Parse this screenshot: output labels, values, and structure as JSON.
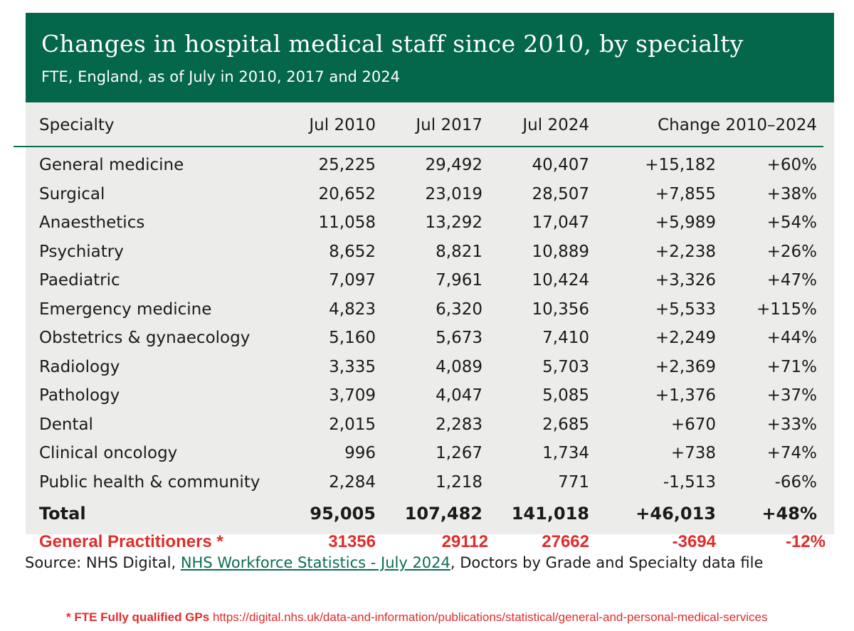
{
  "title": "Changes in hospital medical staff since 2010, by specialty",
  "subtitle": "FTE, England, as of July in 2010, 2017 and 2024",
  "columns": {
    "specialty": "Specialty",
    "jul2010": "Jul 2010",
    "jul2017": "Jul 2017",
    "jul2024": "Jul 2024",
    "change": "Change 2010–2024"
  },
  "rows": [
    {
      "specialty": "General medicine",
      "jul2010": "25,225",
      "jul2017": "29,492",
      "jul2024": "40,407",
      "change": "+15,182",
      "pct": "+60%"
    },
    {
      "specialty": "Surgical",
      "jul2010": "20,652",
      "jul2017": "23,019",
      "jul2024": "28,507",
      "change": "+7,855",
      "pct": "+38%"
    },
    {
      "specialty": "Anaesthetics",
      "jul2010": "11,058",
      "jul2017": "13,292",
      "jul2024": "17,047",
      "change": "+5,989",
      "pct": "+54%"
    },
    {
      "specialty": "Psychiatry",
      "jul2010": "8,652",
      "jul2017": "8,821",
      "jul2024": "10,889",
      "change": "+2,238",
      "pct": "+26%"
    },
    {
      "specialty": "Paediatric",
      "jul2010": "7,097",
      "jul2017": "7,961",
      "jul2024": "10,424",
      "change": "+3,326",
      "pct": "+47%"
    },
    {
      "specialty": "Emergency medicine",
      "jul2010": "4,823",
      "jul2017": "6,320",
      "jul2024": "10,356",
      "change": "+5,533",
      "pct": "+115%"
    },
    {
      "specialty": "Obstetrics & gynaecology",
      "jul2010": "5,160",
      "jul2017": "5,673",
      "jul2024": "7,410",
      "change": "+2,249",
      "pct": "+44%"
    },
    {
      "specialty": "Radiology",
      "jul2010": "3,335",
      "jul2017": "4,089",
      "jul2024": "5,703",
      "change": "+2,369",
      "pct": "+71%"
    },
    {
      "specialty": "Pathology",
      "jul2010": "3,709",
      "jul2017": "4,047",
      "jul2024": "5,085",
      "change": "+1,376",
      "pct": "+37%"
    },
    {
      "specialty": "Dental",
      "jul2010": "2,015",
      "jul2017": "2,283",
      "jul2024": "2,685",
      "change": "+670",
      "pct": "+33%"
    },
    {
      "specialty": "Clinical oncology",
      "jul2010": "996",
      "jul2017": "1,267",
      "jul2024": "1,734",
      "change": "+738",
      "pct": "+74%"
    },
    {
      "specialty": "Public health & community",
      "jul2010": "2,284",
      "jul2017": "1,218",
      "jul2024": "771",
      "change": "-1,513",
      "pct": "-66%"
    }
  ],
  "total": {
    "specialty": "Total",
    "jul2010": "95,005",
    "jul2017": "107,482",
    "jul2024": "141,018",
    "change": "+46,013",
    "pct": "+48%"
  },
  "gp_row": {
    "specialty": "General Practitioners *",
    "jul2010": "31356",
    "jul2017": "29112",
    "jul2024": "27662",
    "change": "-3694",
    "pct": "-12%"
  },
  "source": {
    "prefix": "Source: NHS Digital, ",
    "link_text": "NHS Workforce Statistics - July 2024",
    "suffix": ", Doctors by Grade and Specialty data file"
  },
  "footnote": {
    "label": "* FTE Fully qualified GPs",
    "url": "https://digital.nhs.uk/data-and-information/publications/statistical/general-and-personal-medical-services"
  },
  "colors": {
    "header_green": "#04664a",
    "panel_grey": "#ececeb",
    "gp_red": "#e12c2c"
  }
}
